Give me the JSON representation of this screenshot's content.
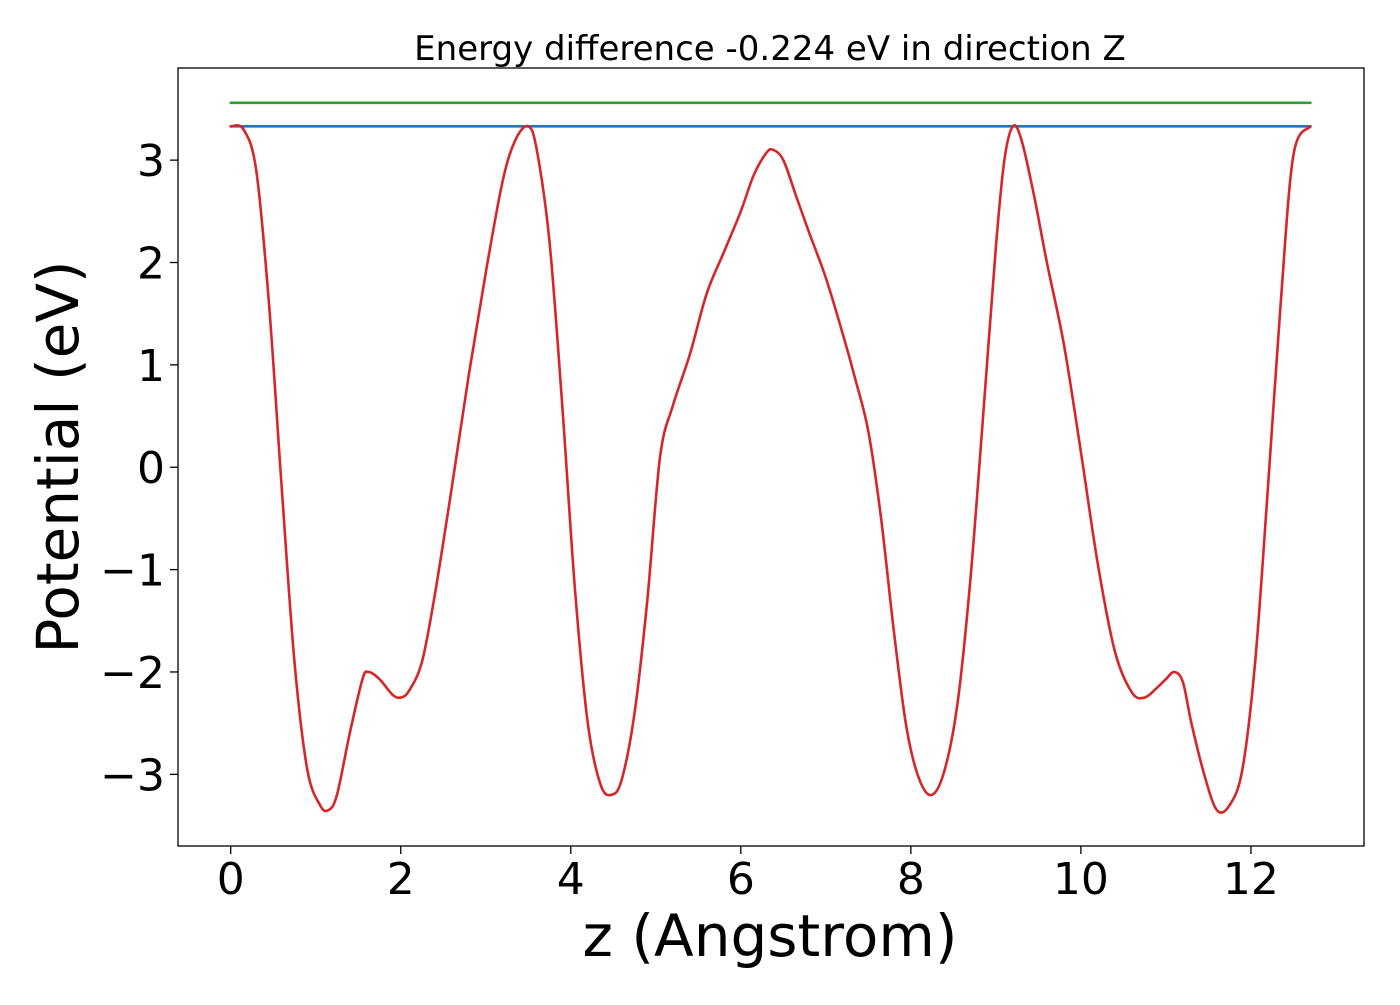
{
  "chart_data": {
    "type": "line",
    "title": "Energy difference -0.224 eV in direction Z",
    "xlabel": "z (Angstrom)",
    "ylabel": "Potential (eV)",
    "xlim": [
      -0.62,
      13.33
    ],
    "ylim": [
      -3.7,
      3.9
    ],
    "xticks": [
      0,
      2,
      4,
      6,
      8,
      10,
      12
    ],
    "xtick_labels": [
      "0",
      "2",
      "4",
      "6",
      "8",
      "10",
      "12"
    ],
    "yticks": [
      -3,
      -2,
      -1,
      0,
      1,
      2,
      3
    ],
    "ytick_labels": [
      "−3",
      "−2",
      "−1",
      "0",
      "1",
      "2",
      "3"
    ],
    "grid": false,
    "legend": "none",
    "series": [
      {
        "color": "#2ca02c",
        "style": "flat",
        "x": [
          0.0,
          12.7
        ],
        "y": [
          3.56,
          3.56
        ]
      },
      {
        "color": "#1f77b4",
        "style": "flat",
        "x": [
          0.0,
          12.7
        ],
        "y": [
          3.33,
          3.33
        ]
      },
      {
        "color": "#d62728",
        "style": "smooth",
        "x": [
          0.0,
          0.15,
          0.3,
          0.45,
          0.6,
          0.75,
          0.9,
          1.05,
          1.15,
          1.25,
          1.4,
          1.55,
          1.62,
          1.75,
          1.9,
          2.0,
          2.1,
          2.25,
          2.4,
          2.6,
          2.8,
          3.0,
          3.2,
          3.35,
          3.5,
          3.6,
          3.75,
          3.9,
          4.05,
          4.2,
          4.35,
          4.48,
          4.6,
          4.75,
          4.9,
          5.05,
          5.2,
          5.4,
          5.6,
          5.8,
          6.0,
          6.15,
          6.3,
          6.38,
          6.5,
          6.65,
          6.8,
          7.0,
          7.2,
          7.35,
          7.5,
          7.65,
          7.8,
          7.95,
          8.1,
          8.25,
          8.4,
          8.55,
          8.7,
          8.85,
          9.0,
          9.1,
          9.2,
          9.3,
          9.45,
          9.6,
          9.8,
          10.0,
          10.2,
          10.4,
          10.6,
          10.75,
          10.9,
          11.0,
          11.1,
          11.2,
          11.3,
          11.45,
          11.6,
          11.75,
          11.9,
          12.05,
          12.2,
          12.35,
          12.5,
          12.7
        ],
        "y": [
          3.33,
          3.3,
          2.9,
          1.6,
          -0.2,
          -1.9,
          -2.95,
          -3.3,
          -3.35,
          -3.2,
          -2.6,
          -2.07,
          -2.0,
          -2.07,
          -2.22,
          -2.25,
          -2.18,
          -1.9,
          -1.25,
          -0.2,
          0.9,
          1.9,
          2.8,
          3.2,
          3.33,
          3.1,
          2.2,
          0.6,
          -1.2,
          -2.5,
          -3.1,
          -3.2,
          -3.05,
          -2.4,
          -1.3,
          0.1,
          0.6,
          1.1,
          1.7,
          2.1,
          2.5,
          2.85,
          3.07,
          3.1,
          3.0,
          2.65,
          2.3,
          1.85,
          1.3,
          0.85,
          0.35,
          -0.5,
          -1.6,
          -2.55,
          -3.05,
          -3.2,
          -2.95,
          -2.3,
          -1.1,
          0.5,
          2.15,
          3.0,
          3.33,
          3.2,
          2.65,
          2.0,
          1.2,
          0.15,
          -0.95,
          -1.8,
          -2.2,
          -2.25,
          -2.15,
          -2.07,
          -2.0,
          -2.1,
          -2.5,
          -3.0,
          -3.35,
          -3.3,
          -2.95,
          -1.9,
          -0.2,
          1.6,
          3.05,
          3.33
        ]
      }
    ]
  }
}
